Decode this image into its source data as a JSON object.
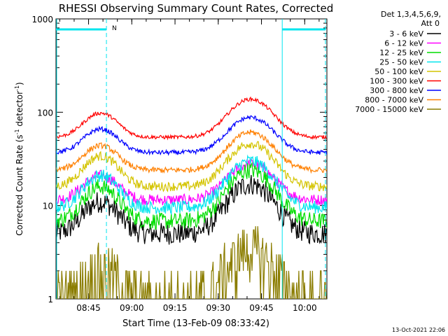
{
  "chart_data": {
    "type": "line",
    "title": "RHESSI Observing Summary Count Rates, Corrected",
    "xlabel": "Start Time (13-Feb-09 08:33:42)",
    "ylabel_main": "Corrected Count Rate (s",
    "ylabel_sup1": "-1",
    "ylabel_mid": " detector",
    "ylabel_sup2": "-1",
    "ylabel_end": ")",
    "y_scale": "log",
    "ylim": [
      1,
      1000
    ],
    "xlim_minutes": [
      0,
      94
    ],
    "x_tick_labels": [
      "08:45",
      "09:00",
      "09:15",
      "09:30",
      "09:45",
      "10:00"
    ],
    "x_tick_minutes": [
      11.3,
      26.3,
      41.3,
      56.3,
      71.3,
      86.3
    ],
    "y_tick_labels": [
      "1",
      "10",
      "100",
      "1000"
    ],
    "y_tick_values": [
      1,
      10,
      100,
      1000
    ],
    "legend_header": "Det 1,3,4,5,6,9,",
    "legend_header2": "Att 0",
    "legend_placement": "right",
    "night_marker_label": "N",
    "night_intervals_minutes": [
      [
        0,
        17.5
      ],
      [
        78.5,
        93.5
      ]
    ],
    "timestamp": "13-Oct-2021 22:06",
    "series": [
      {
        "name": "3 - 6 keV",
        "color": "#000000",
        "base": 5.0,
        "peak1": 11,
        "peak2": 17,
        "noise": 0.12
      },
      {
        "name": "6 - 12 keV",
        "color": "#ff00ff",
        "base": 11.5,
        "peak1": 21,
        "peak2": 28,
        "noise": 0.06
      },
      {
        "name": "12 - 25 keV",
        "color": "#00dd00",
        "base": 6.8,
        "peak1": 16,
        "peak2": 24,
        "noise": 0.09
      },
      {
        "name": "25 - 50 keV",
        "color": "#00e5ee",
        "base": 9.5,
        "peak1": 21,
        "peak2": 30,
        "noise": 0.07
      },
      {
        "name": "50 - 100 keV",
        "color": "#d4c400",
        "base": 16,
        "peak1": 34,
        "peak2": 46,
        "noise": 0.05
      },
      {
        "name": "100 - 300 keV",
        "color": "#ff0000",
        "base": 54,
        "peak1": 98,
        "peak2": 138,
        "noise": 0.02
      },
      {
        "name": "300 - 800 keV",
        "color": "#0000ff",
        "base": 37,
        "peak1": 66,
        "peak2": 88,
        "noise": 0.025
      },
      {
        "name": "800 - 7000 keV",
        "color": "#ff8000",
        "base": 24,
        "peak1": 44,
        "peak2": 61,
        "noise": 0.03
      },
      {
        "name": "7000 - 15000 keV",
        "color": "#8b7d00",
        "base": 1.0,
        "peak1": 2.0,
        "peak2": 3.2,
        "noise": 0.3
      }
    ]
  }
}
